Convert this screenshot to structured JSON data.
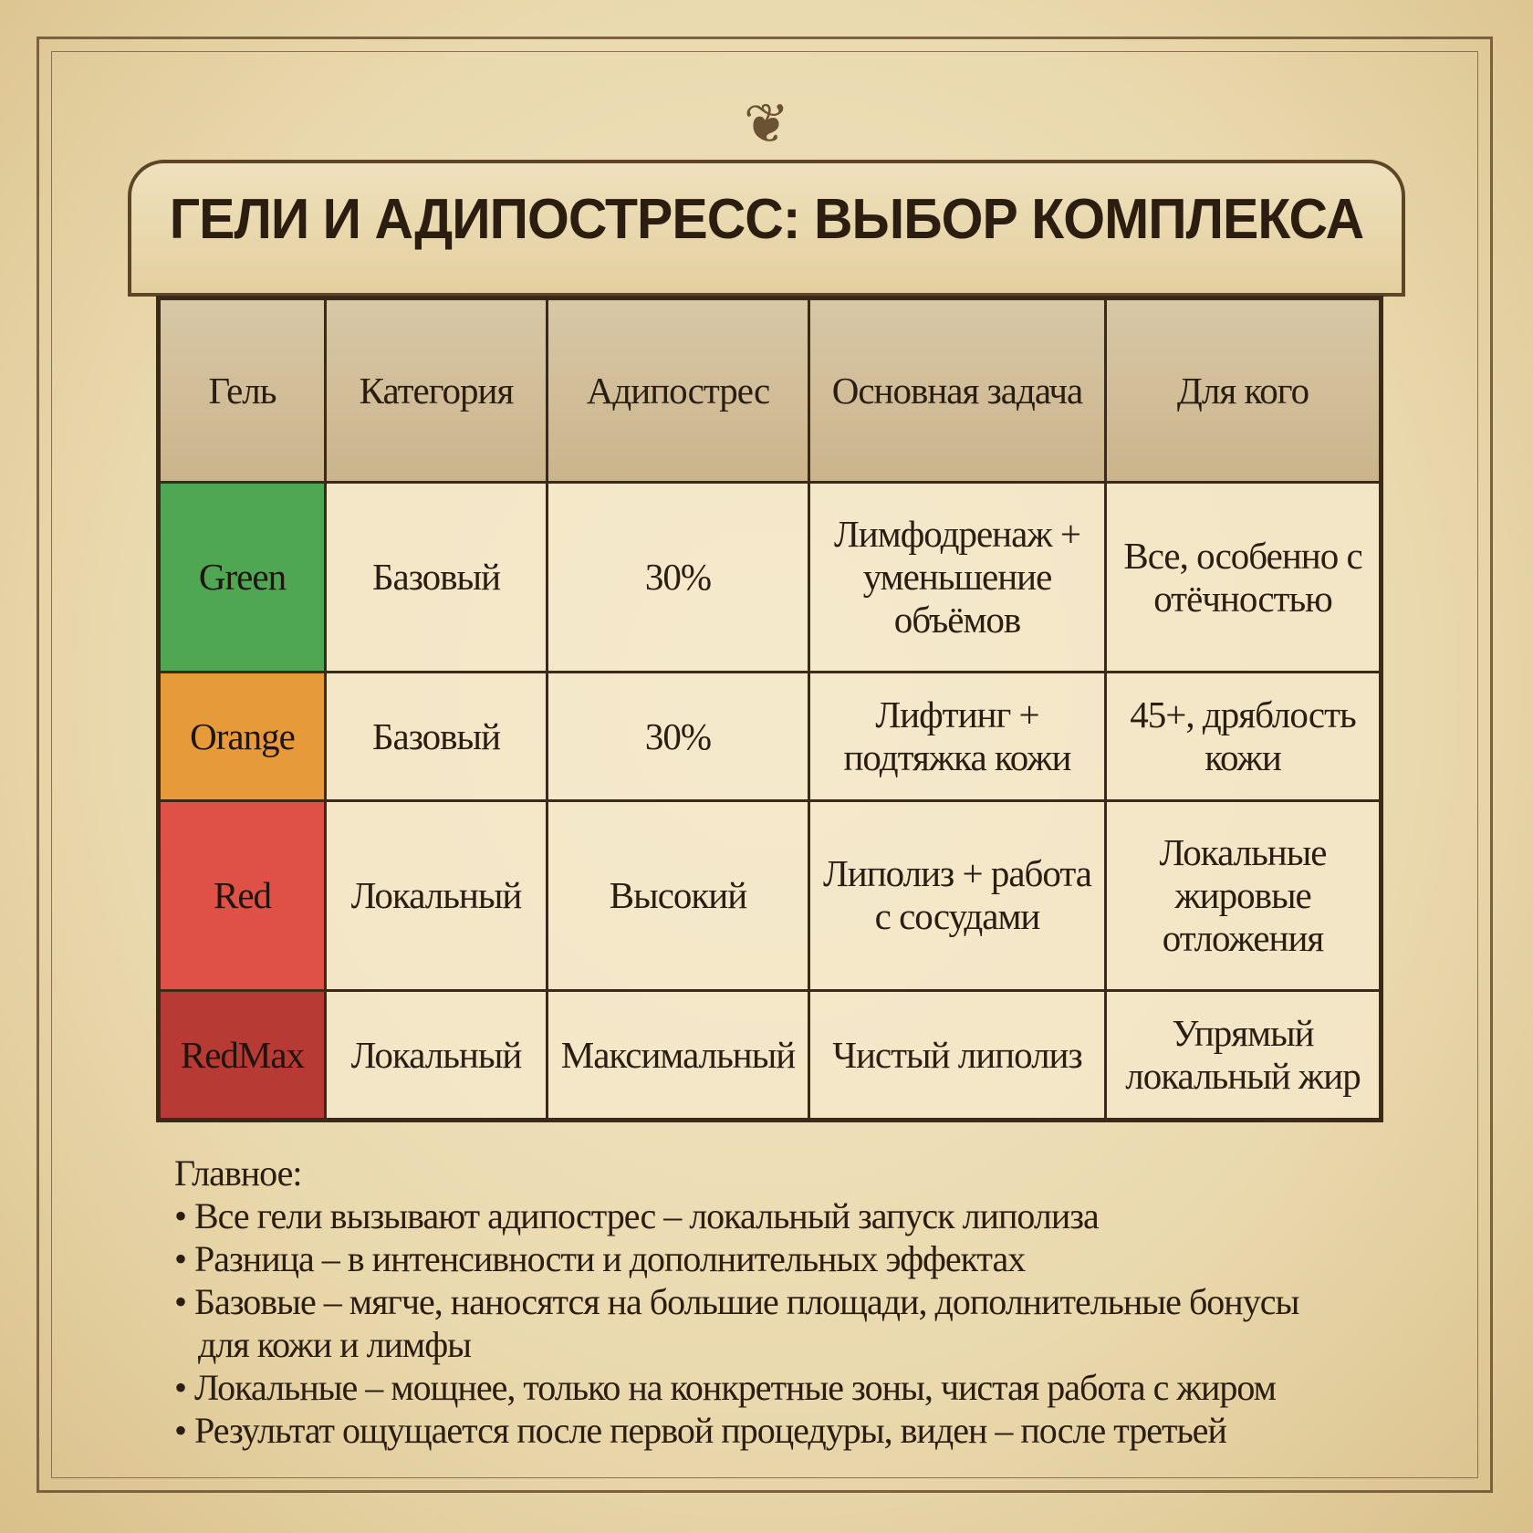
{
  "title": "ГЕЛИ И АДИПОСТРЕСС: ВЫБОР КОМПЛЕКСА",
  "table": {
    "headers": [
      "Гель",
      "Категория",
      "Адипострес",
      "Основная задача",
      "Для кого"
    ],
    "rows": [
      {
        "gel": "Green",
        "color": "#4fa653",
        "category": "Базовый",
        "adipostress": "30%",
        "task": "Лимфодренаж + уменьшение объёмов",
        "target": "Все, особенно с отёчностью"
      },
      {
        "gel": "Orange",
        "color": "#e79a3a",
        "category": "Базовый",
        "adipostress": "30%",
        "task": "Лифтинг + подтяжка кожи",
        "target": "45+, дряблость кожи"
      },
      {
        "gel": "Red",
        "color": "#df5047",
        "category": "Локальный",
        "adipostress": "Высокий",
        "task": "Липолиз + работа с сосудами",
        "target": "Локальные жировые отложения"
      },
      {
        "gel": "RedMax",
        "color": "#b83a35",
        "category": "Локальный",
        "adipostress": "Максимальный",
        "task": "Чистый липолиз",
        "target": "Упрямый локальный жир"
      }
    ]
  },
  "summary": {
    "heading": "Главное:",
    "items": [
      "• Все гели вызывают адипострес – локальный запуск липолиза",
      "• Разница – в интенсивности и дополнительных эффектах",
      "• Базовые – мягче, наносятся на большие площади, дополнительные бонусы для кожи и лимфы",
      "• Локальные – мощнее, только на конкретные зоны, чистая работа с жиром",
      "• Результат ощущается после первой процедуры, виден – после третьей"
    ]
  }
}
